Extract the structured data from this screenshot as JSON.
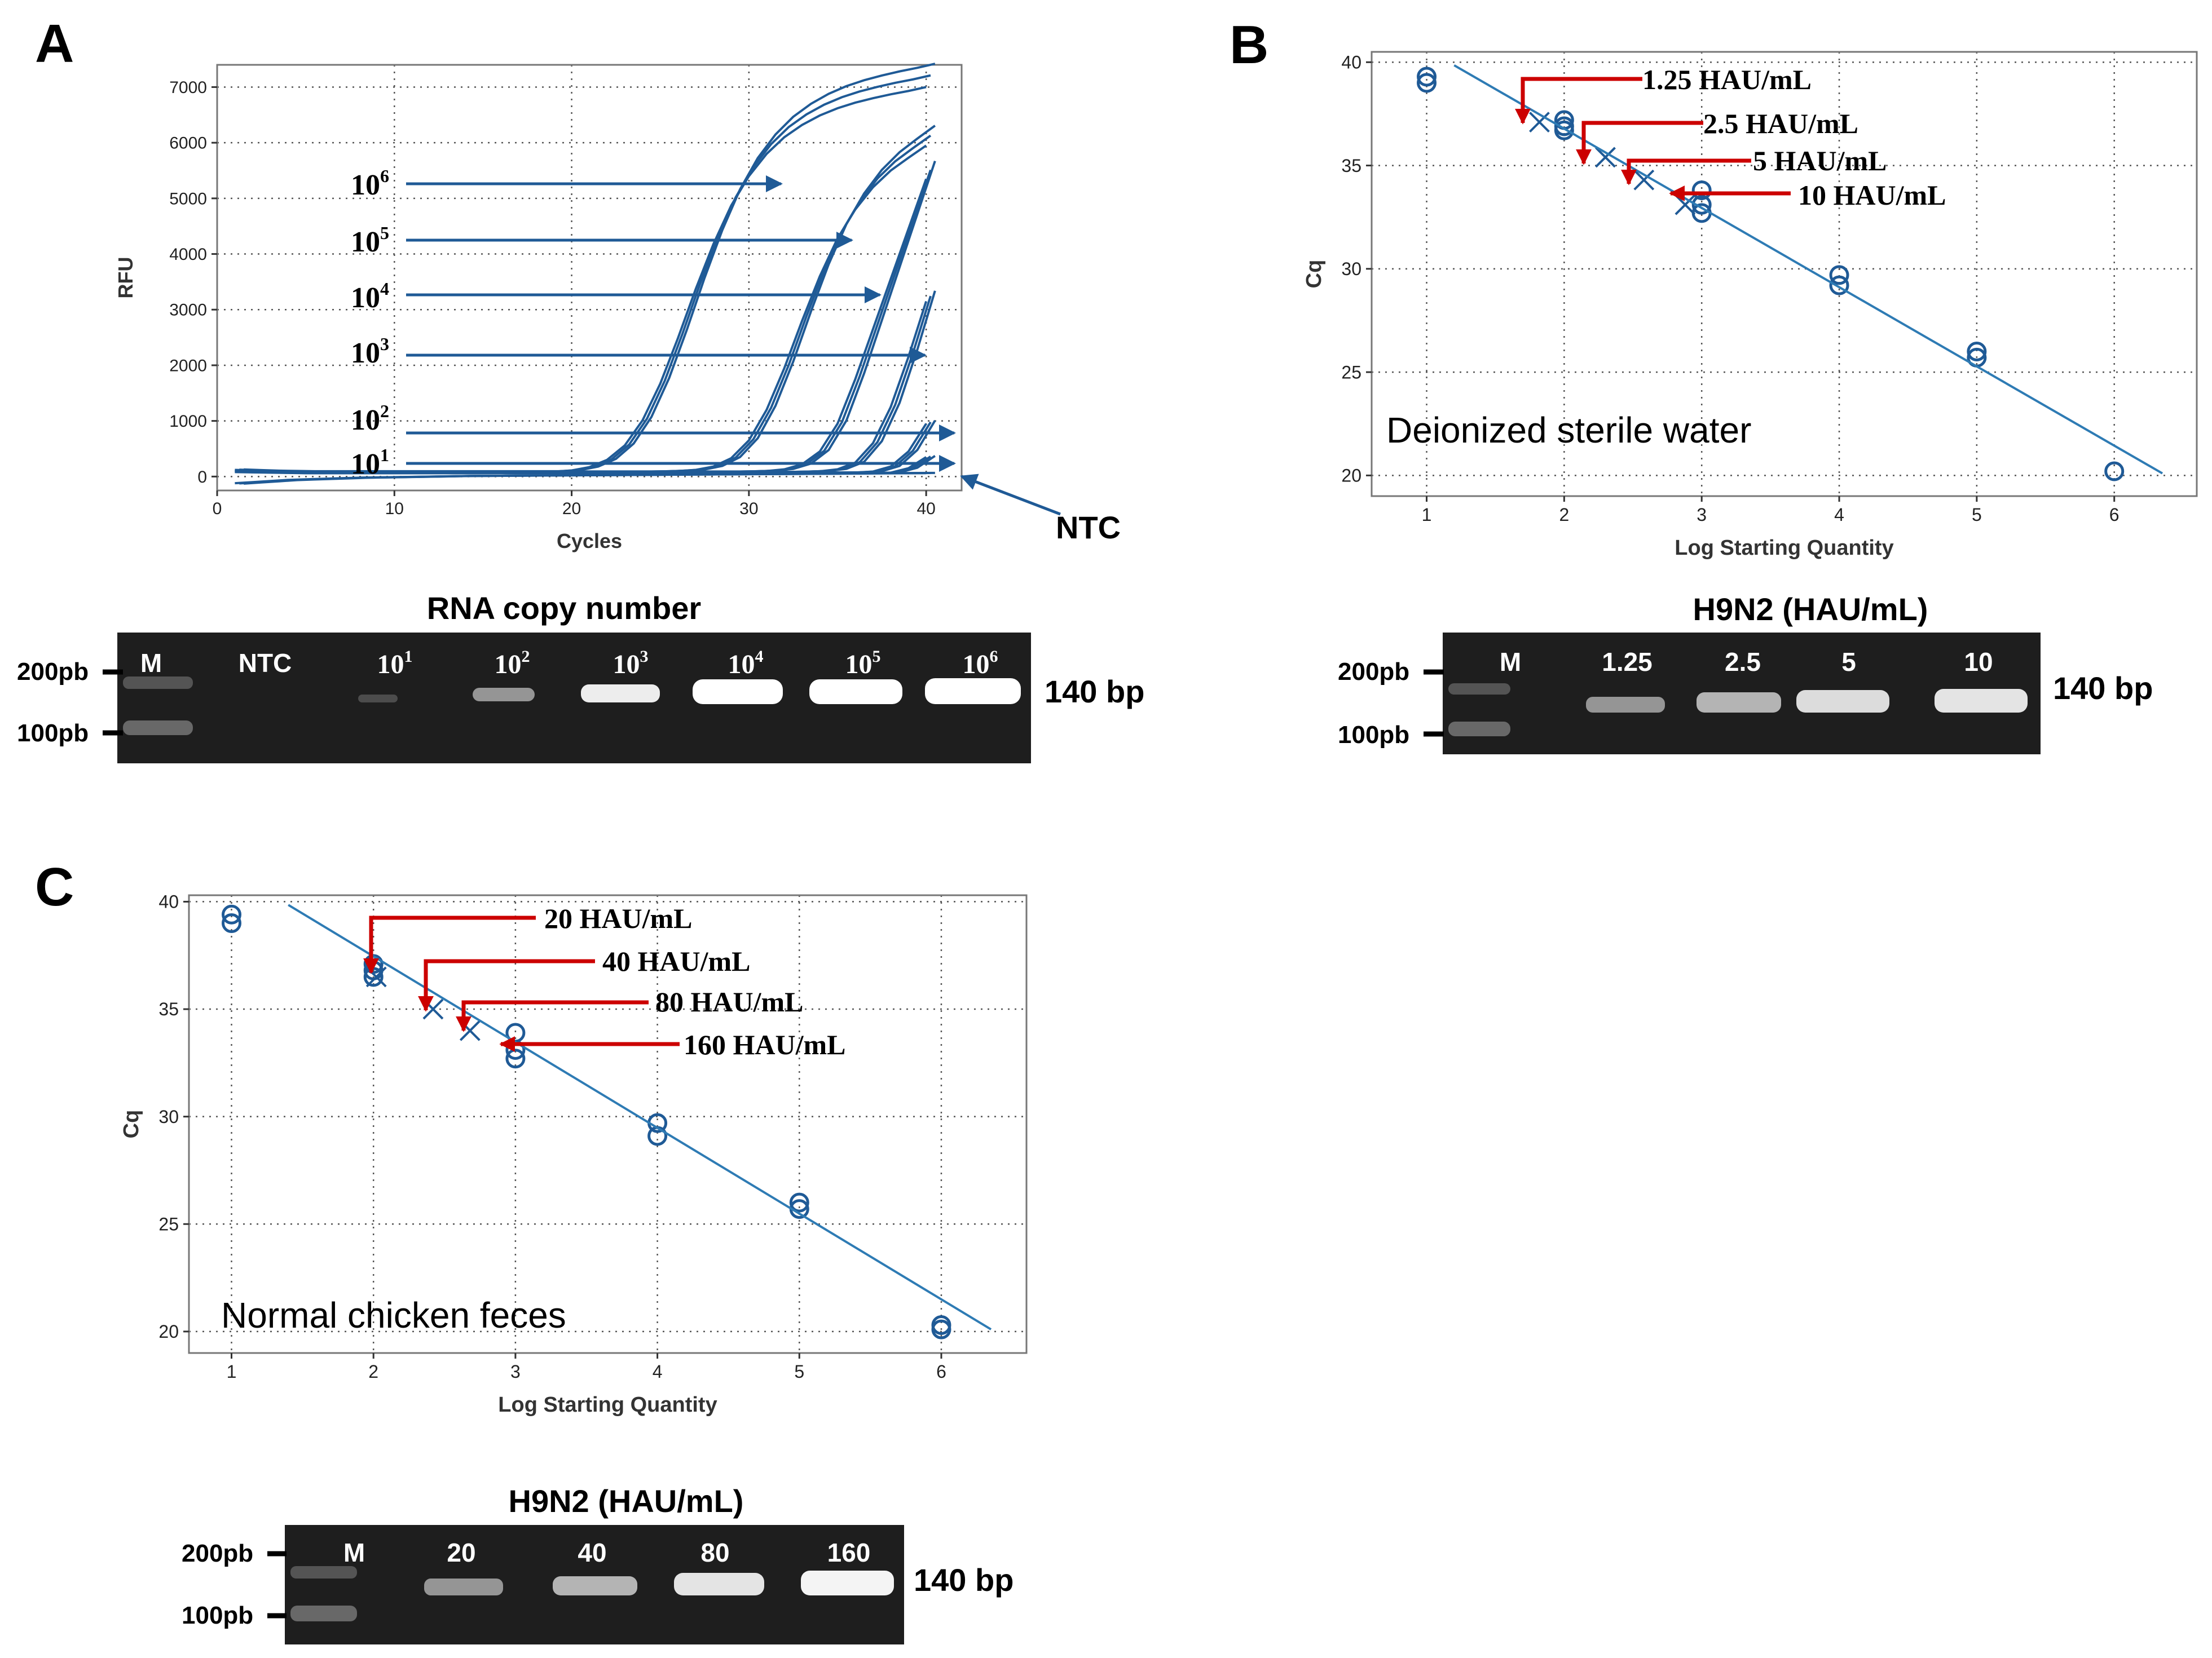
{
  "colors": {
    "curve": "#1f5a96",
    "fit": "#2e7bb4",
    "point": "#1f5a96",
    "arrow": "#cc0000",
    "gel_bg": "#1e1e1e",
    "band": "#f2f2f2"
  },
  "panels": {
    "A": {
      "letter": "A",
      "annotations": [
        {
          "base": "10",
          "exp": "6"
        },
        {
          "base": "10",
          "exp": "5"
        },
        {
          "base": "10",
          "exp": "4"
        },
        {
          "base": "10",
          "exp": "3"
        },
        {
          "base": "10",
          "exp": "2"
        },
        {
          "base": "10",
          "exp": "1"
        }
      ],
      "ntc_label": "NTC",
      "gel_title": "RNA copy number",
      "gel_lanes": [
        {
          "base": "M",
          "exp": ""
        },
        {
          "base": "NTC",
          "exp": ""
        },
        {
          "base": "10",
          "exp": "1"
        },
        {
          "base": "10",
          "exp": "2"
        },
        {
          "base": "10",
          "exp": "3"
        },
        {
          "base": "10",
          "exp": "4"
        },
        {
          "base": "10",
          "exp": "5"
        },
        {
          "base": "10",
          "exp": "6"
        }
      ],
      "ladder": [
        "200pb",
        "100pb"
      ],
      "product_label": "140 bp"
    },
    "B": {
      "letter": "B",
      "sample_label": "Deionized sterile water",
      "annotations": [
        "1.25 HAU/mL",
        "2.5 HAU/mL",
        "5 HAU/mL",
        "10 HAU/mL"
      ],
      "gel_title": "H9N2 (HAU/mL)",
      "gel_lanes": [
        "M",
        "1.25",
        "2.5",
        "5",
        "10"
      ],
      "ladder": [
        "200pb",
        "100pb"
      ],
      "product_label": "140 bp"
    },
    "C": {
      "letter": "C",
      "sample_label": "Normal chicken feces",
      "annotations": [
        "20 HAU/mL",
        "40 HAU/mL",
        "80 HAU/mL",
        "160 HAU/mL"
      ],
      "gel_title": "H9N2 (HAU/mL)",
      "gel_lanes": [
        "M",
        "20",
        "40",
        "80",
        "160"
      ],
      "ladder": [
        "200pb",
        "100pb"
      ],
      "product_label": "140 bp"
    }
  },
  "chart_data": [
    {
      "panel": "A",
      "type": "line",
      "title": "",
      "xlabel": "Cycles",
      "ylabel": "RFU",
      "xlim": [
        0,
        42
      ],
      "ylim": [
        -250,
        7400
      ],
      "xticks": [
        0,
        10,
        20,
        30,
        40
      ],
      "yticks": [
        0,
        1000,
        2000,
        3000,
        4000,
        5000,
        6000,
        7000
      ],
      "grid": true,
      "x": [
        1,
        2,
        3,
        4,
        5,
        6,
        7,
        8,
        9,
        10,
        11,
        12,
        13,
        14,
        15,
        16,
        17,
        18,
        19,
        20,
        21,
        22,
        23,
        24,
        25,
        26,
        27,
        28,
        29,
        30,
        31,
        32,
        33,
        34,
        35,
        36,
        37,
        38,
        39,
        40
      ],
      "series": [
        {
          "name": "10^6",
          "values": [
            120,
            110,
            100,
            95,
            90,
            90,
            90,
            90,
            90,
            90,
            90,
            90,
            90,
            90,
            90,
            90,
            90,
            90,
            90,
            110,
            170,
            300,
            560,
            1010,
            1670,
            2490,
            3370,
            4180,
            4870,
            5400,
            5800,
            6100,
            6320,
            6490,
            6620,
            6720,
            6800,
            6870,
            6930,
            7000
          ]
        },
        {
          "name": "10^5",
          "values": [
            110,
            100,
            95,
            90,
            85,
            85,
            85,
            85,
            85,
            85,
            85,
            85,
            85,
            85,
            85,
            85,
            85,
            85,
            85,
            85,
            85,
            85,
            85,
            85,
            90,
            100,
            120,
            180,
            330,
            650,
            1200,
            1950,
            2800,
            3600,
            4280,
            4800,
            5200,
            5500,
            5730,
            5950
          ]
        },
        {
          "name": "10^4",
          "values": [
            110,
            100,
            95,
            90,
            85,
            85,
            85,
            85,
            85,
            85,
            85,
            85,
            85,
            85,
            85,
            85,
            85,
            85,
            85,
            85,
            85,
            85,
            85,
            85,
            85,
            85,
            85,
            85,
            85,
            90,
            100,
            130,
            220,
            450,
            950,
            1750,
            2650,
            3550,
            4450,
            5350
          ]
        },
        {
          "name": "10^3",
          "values": [
            100,
            95,
            90,
            85,
            80,
            80,
            80,
            80,
            80,
            80,
            80,
            80,
            80,
            80,
            80,
            80,
            80,
            80,
            80,
            80,
            80,
            80,
            80,
            80,
            80,
            80,
            80,
            80,
            80,
            80,
            80,
            80,
            85,
            95,
            130,
            250,
            600,
            1250,
            2150,
            3150
          ]
        },
        {
          "name": "10^2",
          "values": [
            90,
            85,
            80,
            75,
            70,
            70,
            70,
            70,
            70,
            70,
            70,
            70,
            70,
            70,
            70,
            70,
            70,
            70,
            70,
            70,
            70,
            70,
            70,
            70,
            70,
            70,
            70,
            70,
            70,
            70,
            70,
            70,
            70,
            70,
            70,
            72,
            90,
            180,
            450,
            950
          ]
        },
        {
          "name": "10^1",
          "values": [
            80,
            75,
            70,
            65,
            60,
            60,
            60,
            60,
            60,
            60,
            60,
            60,
            60,
            60,
            60,
            60,
            60,
            60,
            60,
            60,
            60,
            60,
            60,
            60,
            60,
            60,
            60,
            60,
            60,
            60,
            60,
            60,
            60,
            60,
            60,
            60,
            60,
            70,
            150,
            350
          ]
        },
        {
          "name": "NTC",
          "values": [
            -120,
            -100,
            -80,
            -60,
            -50,
            -40,
            -30,
            -20,
            -15,
            -10,
            -5,
            0,
            5,
            10,
            12,
            14,
            16,
            18,
            20,
            22,
            24,
            26,
            28,
            30,
            32,
            34,
            36,
            38,
            40,
            42,
            44,
            46,
            48,
            50,
            52,
            54,
            56,
            58,
            60,
            62
          ]
        }
      ]
    },
    {
      "panel": "B",
      "type": "scatter",
      "title": "",
      "xlabel": "Log Starting Quantity",
      "ylabel": "Cq",
      "xlim": [
        0.6,
        6.6
      ],
      "ylim": [
        19,
        40.5
      ],
      "xticks": [
        1,
        2,
        3,
        4,
        5,
        6
      ],
      "yticks": [
        20,
        25,
        30,
        35,
        40
      ],
      "grid": true,
      "series": [
        {
          "name": "standards",
          "marker": "o",
          "x": [
            1,
            1,
            2,
            2,
            2,
            3,
            3,
            3,
            4,
            4,
            5,
            5,
            6
          ],
          "y": [
            39.3,
            39.0,
            37.2,
            36.9,
            36.7,
            33.8,
            33.1,
            32.7,
            29.7,
            29.2,
            26.0,
            25.7,
            20.2
          ]
        },
        {
          "name": "unknowns",
          "marker": "x",
          "x": [
            1.82,
            2.3,
            2.58,
            2.88
          ],
          "y": [
            37.1,
            35.4,
            34.3,
            33.1
          ]
        },
        {
          "name": "fit",
          "marker": "line",
          "x": [
            1.2,
            6.35
          ],
          "y": [
            39.85,
            20.1
          ]
        }
      ]
    },
    {
      "panel": "C",
      "type": "scatter",
      "title": "",
      "xlabel": "Log Starting Quantity",
      "ylabel": "Cq",
      "xlim": [
        0.7,
        6.6
      ],
      "ylim": [
        19,
        40.3
      ],
      "xticks": [
        1,
        2,
        3,
        4,
        5,
        6
      ],
      "yticks": [
        20,
        25,
        30,
        35,
        40
      ],
      "grid": true,
      "series": [
        {
          "name": "standards",
          "marker": "o",
          "x": [
            1,
            1,
            2,
            2,
            2,
            3,
            3,
            3,
            4,
            4,
            5,
            5,
            6,
            6
          ],
          "y": [
            39.4,
            39.0,
            37.1,
            36.8,
            36.5,
            33.9,
            33.1,
            32.7,
            29.7,
            29.1,
            26.0,
            25.7,
            20.3,
            20.1
          ]
        },
        {
          "name": "unknowns",
          "marker": "x",
          "x": [
            2.02,
            2.42,
            2.68
          ],
          "y": [
            36.5,
            35.0,
            34.0
          ]
        },
        {
          "name": "fit",
          "marker": "line",
          "x": [
            1.4,
            6.35
          ],
          "y": [
            39.85,
            20.1
          ]
        }
      ]
    }
  ]
}
